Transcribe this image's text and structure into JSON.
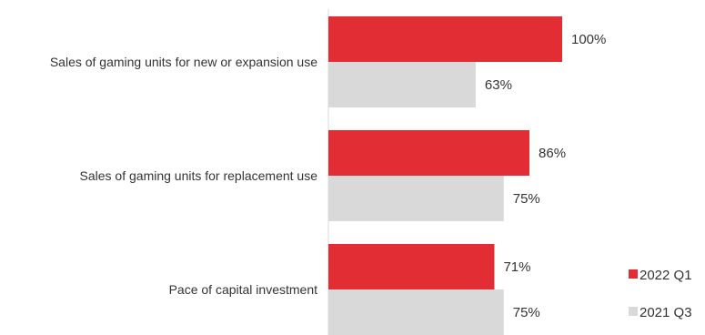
{
  "chart_data": {
    "type": "bar",
    "orientation": "horizontal",
    "categories": [
      "Sales of gaming units for new or expansion use",
      "Sales of gaming units for replacement use",
      "Pace of capital investment"
    ],
    "series": [
      {
        "name": "2022 Q1",
        "color": "#e32d34",
        "values": [
          100,
          86,
          71
        ],
        "labels": [
          "100%",
          "86%",
          "71%"
        ]
      },
      {
        "name": "2021 Q3",
        "color": "#d9d9d9",
        "values": [
          63,
          75,
          75
        ],
        "labels": [
          "63%",
          "75%",
          "75%"
        ]
      }
    ],
    "title": "",
    "xlabel": "",
    "ylabel": "",
    "xlim": [
      0,
      100
    ],
    "grid": false,
    "legend_position": "bottom-right"
  }
}
